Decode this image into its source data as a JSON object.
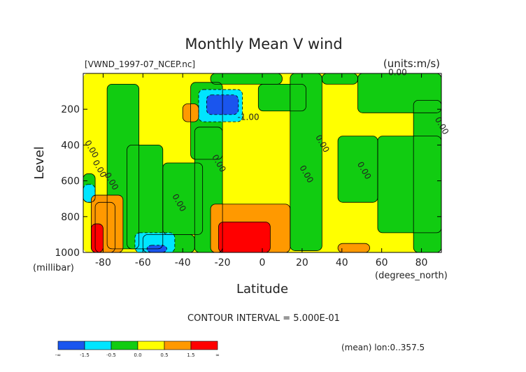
{
  "chart_data": {
    "type": "heatmap",
    "title": "Monthly Mean V wind",
    "file_label": "[VWND_1997-07_NCEP.nc]",
    "units_label": "(units:m/s)",
    "xlabel": "Latitude",
    "x_unit_label": "(degrees_north)",
    "ylabel": "Level",
    "y_unit_label": "(millibar)",
    "xlim": [
      -90,
      90
    ],
    "ylim": [
      1000,
      0
    ],
    "x_ticks": [
      -80,
      -60,
      -40,
      -20,
      0,
      20,
      40,
      60,
      80
    ],
    "y_ticks": [
      200,
      400,
      600,
      800,
      1000
    ],
    "contour_interval_text": "CONTOUR INTERVAL = 5.000E-01",
    "footer_text": "(mean) lon:0..357.5",
    "contour_labels": [
      {
        "text": "0.00",
        "lat": 68,
        "lev": 10
      },
      {
        "text": "0.00",
        "lat": 89,
        "lev": 300
      },
      {
        "text": "0.00",
        "lat": -87,
        "lev": 430
      },
      {
        "text": "0.00",
        "lat": -83,
        "lev": 540
      },
      {
        "text": "0.00",
        "lat": -77,
        "lev": 610
      },
      {
        "text": "0.00",
        "lat": -43,
        "lev": 730
      },
      {
        "text": "0.00",
        "lat": -23,
        "lev": 510
      },
      {
        "text": "-1.00",
        "lat": -7,
        "lev": 260
      },
      {
        "text": "0.00",
        "lat": 29,
        "lev": 400
      },
      {
        "text": "0.00",
        "lat": 21,
        "lev": 570
      },
      {
        "text": "0.00",
        "lat": 50,
        "lev": 550
      }
    ],
    "colorbar": {
      "colors": [
        "#1a55ee",
        "#00e5ff",
        "#11cc11",
        "#ffff00",
        "#ff9900",
        "#ff0000"
      ],
      "labels": [
        "-∞",
        "-1.5",
        "-0.5",
        "0.0",
        "0.5",
        "1.5",
        "∞"
      ]
    },
    "regions": [
      {
        "color": "#ffff00",
        "lat": [
          -90,
          90
        ],
        "lev": [
          0,
          1000
        ]
      },
      {
        "color": "#11cc11",
        "lat": [
          -78,
          -62
        ],
        "lev": [
          60,
          980
        ]
      },
      {
        "color": "#11cc11",
        "lat": [
          -68,
          -50
        ],
        "lev": [
          400,
          980
        ]
      },
      {
        "color": "#11cc11",
        "lat": [
          -50,
          -30
        ],
        "lev": [
          500,
          900
        ]
      },
      {
        "color": "#11cc11",
        "lat": [
          -36,
          -20
        ],
        "lev": [
          50,
          480
        ]
      },
      {
        "color": "#11cc11",
        "lat": [
          -34,
          -20
        ],
        "lev": [
          300,
          1000
        ]
      },
      {
        "color": "#11cc11",
        "lat": [
          -26,
          10
        ],
        "lev": [
          0,
          60
        ]
      },
      {
        "color": "#11cc11",
        "lat": [
          -2,
          22
        ],
        "lev": [
          60,
          210
        ]
      },
      {
        "color": "#11cc11",
        "lat": [
          14,
          30
        ],
        "lev": [
          0,
          990
        ]
      },
      {
        "color": "#11cc11",
        "lat": [
          30,
          48
        ],
        "lev": [
          0,
          60
        ]
      },
      {
        "color": "#11cc11",
        "lat": [
          48,
          90
        ],
        "lev": [
          0,
          220
        ]
      },
      {
        "color": "#11cc11",
        "lat": [
          38,
          58
        ],
        "lev": [
          350,
          720
        ]
      },
      {
        "color": "#11cc11",
        "lat": [
          58,
          90
        ],
        "lev": [
          350,
          890
        ]
      },
      {
        "color": "#11cc11",
        "lat": [
          76,
          90
        ],
        "lev": [
          150,
          1000
        ]
      },
      {
        "color": "#11cc11",
        "lat": [
          -90,
          -84
        ],
        "lev": [
          560,
          720
        ]
      },
      {
        "color": "#11cc11",
        "lat": [
          -84,
          -74
        ],
        "lev": [
          720,
          1000
        ]
      },
      {
        "color": "#11cc11",
        "lat": [
          -60,
          -34
        ],
        "lev": [
          900,
          1000
        ]
      },
      {
        "color": "#00e5ff",
        "lat": [
          -32,
          -10
        ],
        "lev": [
          90,
          270
        ]
      },
      {
        "color": "#1a55ee",
        "lat": [
          -28,
          -12
        ],
        "lev": [
          120,
          230
        ]
      },
      {
        "color": "#00e5ff",
        "lat": [
          -64,
          -44
        ],
        "lev": [
          890,
          1000
        ]
      },
      {
        "color": "#1a55ee",
        "lat": [
          -58,
          -48
        ],
        "lev": [
          960,
          1000
        ]
      },
      {
        "color": "#00e5ff",
        "lat": [
          -90,
          -84
        ],
        "lev": [
          620,
          720
        ]
      },
      {
        "color": "#ff9900",
        "lat": [
          -40,
          -32
        ],
        "lev": [
          170,
          270
        ]
      },
      {
        "color": "#ff9900",
        "lat": [
          -26,
          14
        ],
        "lev": [
          730,
          1000
        ]
      },
      {
        "color": "#ff0000",
        "lat": [
          -22,
          4
        ],
        "lev": [
          830,
          1000
        ]
      },
      {
        "color": "#ff9900",
        "lat": [
          -86,
          -70
        ],
        "lev": [
          680,
          1000
        ]
      },
      {
        "color": "#ff0000",
        "lat": [
          -86,
          -80
        ],
        "lev": [
          840,
          1000
        ]
      },
      {
        "color": "#ff9900",
        "lat": [
          38,
          54
        ],
        "lev": [
          950,
          1000
        ]
      }
    ]
  }
}
